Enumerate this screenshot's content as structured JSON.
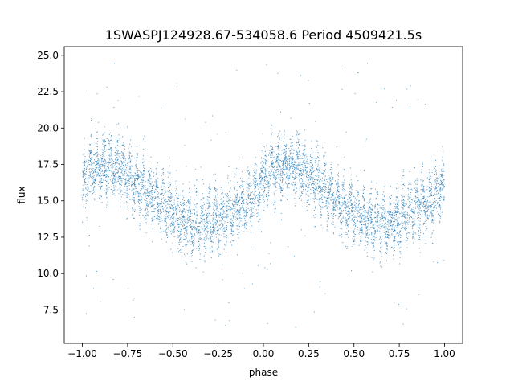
{
  "chart_data": {
    "type": "scatter",
    "title": "1SWASPJ124928.67-534058.6 Period 4509421.5s",
    "xlabel": "phase",
    "ylabel": "flux",
    "xlim": [
      -1.1,
      1.1
    ],
    "ylim": [
      5.2,
      25.6
    ],
    "xticks": [
      -1.0,
      -0.75,
      -0.5,
      -0.25,
      0.0,
      0.25,
      0.5,
      0.75,
      1.0
    ],
    "xtick_labels": [
      "−1.00",
      "−0.75",
      "−0.50",
      "−0.25",
      "0.00",
      "0.25",
      "0.50",
      "0.75",
      "1.00"
    ],
    "yticks": [
      7.5,
      10.0,
      12.5,
      15.0,
      17.5,
      20.0,
      22.5,
      25.0
    ],
    "ytick_labels": [
      "7.5",
      "10.0",
      "12.5",
      "15.0",
      "17.5",
      "20.0",
      "22.5",
      "25.0"
    ],
    "grid": false,
    "series": [
      {
        "color": "#1f77b4",
        "profile_x": [
          0.0,
          0.05,
          0.1,
          0.15,
          0.2,
          0.25,
          0.3,
          0.35,
          0.4,
          0.45,
          0.5,
          0.55,
          0.6,
          0.65,
          0.7,
          0.75,
          0.8,
          0.85,
          0.9,
          0.95,
          1.0
        ],
        "profile_y": [
          16.0,
          17.3,
          17.2,
          17.5,
          17.4,
          16.6,
          16.2,
          15.7,
          15.2,
          14.6,
          14.3,
          13.7,
          13.5,
          13.4,
          13.5,
          13.7,
          14.2,
          14.6,
          14.8,
          15.4,
          16.1
        ],
        "spread": 1.3,
        "count": 3200,
        "outlier_range": [
          6.0,
          24.5
        ]
      }
    ]
  }
}
